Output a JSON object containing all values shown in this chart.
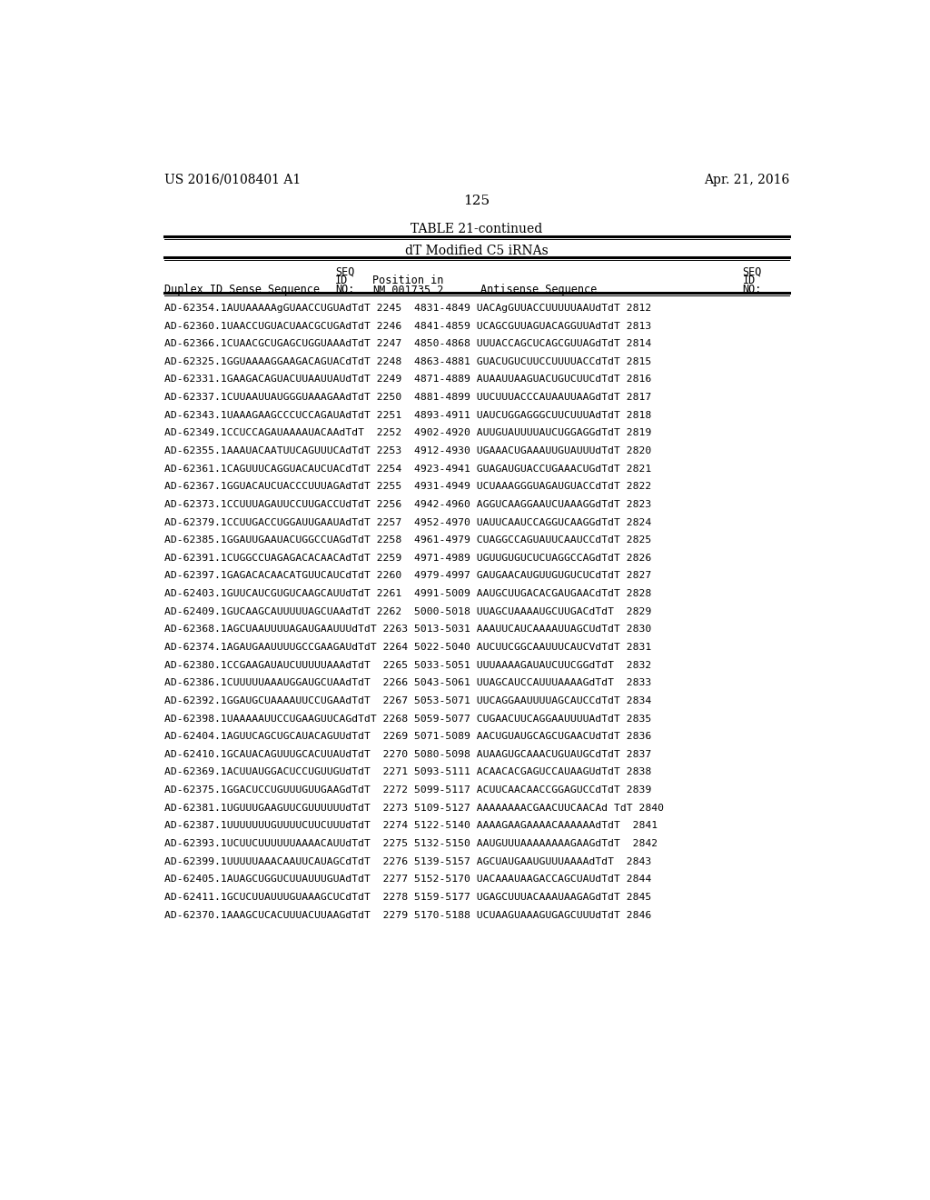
{
  "header_left": "US 2016/0108401 A1",
  "header_right": "Apr. 21, 2016",
  "page_number": "125",
  "table_title": "TABLE 21-continued",
  "table_subtitle": "dT Modified C5 iRNAs",
  "background_color": "#ffffff",
  "text_color": "#000000",
  "data_rows": [
    "AD-62354.1AUUAAAAAgGUAACCUGUAdTdT 2245  4831-4849  UACAgGUUACCUUUUUAAUdTdT 2812",
    "AD-62360.1UAACCUGUACUAACGCUGAdTdT 2246  4841-4859  UCAGCGUUAGUACAGGUUAdTdT 2813",
    "AD-62366.1CUAACGCUGAGCUGGUAAAdTdT 2247  4850-4868  UUUACCAGCUCAGCGUUAGdTdT 2814",
    "AD-62325.1GGUAAAAGGAAGACAGUACdTdT 2248  4863-4881  GUACUGUCUUCCUUUUACCdTdT 2815",
    "AD-62331.1GAAGACAGUACUUAAUUAUdTdT 2249  4871-4889  AUAAUUAAGUACUGUCUUCdTdT 2816",
    "AD-62337.1CUUAAUUAUGGGUAAAGAAdTdT 2250  4881-4899  UUCUUUACCCAUAAUUAAGdTdT 2817",
    "AD-62343.1UAAAGAAGCCCUCCAGAUAdTdT 2251  4893-4911  UAUCUGGAGGGCUUCUUUAdTdT 2818",
    "AD-62349.1CCUCCAGAUAAAAUACAAdTdT  2252  4902-4920  AUUGUAUUUUAUCUGGAGGdTdT 2819",
    "AD-62355.1AAAUACAATUUCAGUUUCAdTdT 2253  4912-4930  UGAAACUGAAAUUGUAUUUdTdT 2820",
    "AD-62361.1CAGUUUCAGGUACAUCUACdTdT 2254  4923-4941  GUAGAUGUACCUGAAACUGdTdT 2821",
    "AD-62367.1GGUACAUCUACCCUUUAGAdTdT 2255  4931-4949  UCUAAAGGGUAGAUGUACCdTdT 2822",
    "AD-62373.1CCUUUAGAUUCCUUGACCUdTdT 2256  4942-4960  AGGUCAAGGAAUCUAAAGGdTdT 2823",
    "AD-62379.1CCUUGACCUGGAUUGAAUAdTdT 2257  4952-4970  UAUUCAAUCCAGGUCAAGGdTdT 2824",
    "AD-62385.1GGAUUGAAUACUGGCCUAGdTdT 2258  4961-4979  CUAGGCCAGUAUUCAAUCCdTdT 2825",
    "AD-62391.1CUGGCCUAGAGACACAACAdTdT 2259  4971-4989  UGUUGUGUCUCUAGGCCAGdTdT 2826",
    "AD-62397.1GAGACACAACATGUUCAUCdTdT 2260  4979-4997  GAUGAACAUGUUGUGUCUCdTdT 2827",
    "AD-62403.1GUUCAUCGUGUCAAGCAUUdTdT 2261  4991-5009  AAUGCUUGACACGAUGAACdTdT 2828",
    "AD-62409.1GUCAAGCAUUUUUAGCUAAdTdT 2262  5000-5018  UUAGCUAAAAUGCUUGACdTdT  2829",
    "AD-62368.1AGCUAAUUUUAGAUGAAUUUdTdT 2263 5013-5031  AAAUUCAUCAAAAUUAGCUdTdT 2830",
    "AD-62374.1AGAUGAAUUUUGCCGAAGAUdTdT 2264 5022-5040  AUCUUCGGCAAUUUCAUCVdTdT 2831",
    "AD-62380.1CCGAAGAUAUCUUUUUAAAdTdT  2265 5033-5051  UUUAAAAGAUAUCUUCGGdTdT  2832",
    "AD-62386.1CUUUUUAAAUGGAUGCUAAdTdT  2266 5043-5061  UUAGCAUCCAUUUAAAAGdTdT  2833",
    "AD-62392.1GGAUGCUAAAAUUCCUGAAdTdT  2267 5053-5071  UUCAGGAAUUUUAGCAUCCdTdT 2834",
    "AD-62398.1UAAAAAUUCCUGAAGUUCAGdTdT 2268 5059-5077  CUGAACUUCAGGAAUUUUAdTdT 2835",
    "AD-62404.1AGUUCAGCUGCAUACAGUUdTdT  2269 5071-5089  AACUGUAUGCAGCUGAACUdTdT 2836",
    "AD-62410.1GCAUACAGUUUGCACUUAUdTdT  2270 5080-5098  AUAAGUGCAAACUGUAUGCdTdT 2837",
    "AD-62369.1ACUUAUGGACUCCUGUUGUdTdT  2271 5093-5111  ACAACACGAGUCCAUAAGUdTdT 2838",
    "AD-62375.1GGACUCCUGUUUGUUGAAGdTdT  2272 5099-5117  ACUUCAACAACCGGAGUCCdTdT 2839",
    "AD-62381.1UGUUUGAAGUUCGUUUUUUdTdT  2273 5109-5127  AAAAAAAACGAACUUCAACAd TdT 2840",
    "AD-62387.1UUUUUUUGUUUUCUUCUUUdTdT  2274 5122-5140  AAAAGAAGAAAACAAAAAAdTdT  2841",
    "AD-62393.1UCUUCUUUUUUAAAACAUUdTdT  2275 5132-5150  AAUGUUUAAAAAAAAGAAGdTdT  2842",
    "AD-62399.1UUUUUAAACAAUUCAUAGCdTdT  2276 5139-5157  AGCUAUGAAUGUUUAAAAdTdT  2843",
    "AD-62405.1AUAGCUGGUCUUAUUUGUAdTdT  2277 5152-5170  UACAAAUAAGACCAGCUAUdTdT 2844",
    "AD-62411.1GCUCUUAUUUGUAAAGCUCdTdT  2278 5159-5177  UGAGCUUUACAAAUAAGAGdTdT 2845",
    "AD-62370.1AAAGCUCACUUUACUUAAGdTdT  2279 5170-5188  UCUAAGUAAAGUGAGCUUUdTdT 2846"
  ]
}
